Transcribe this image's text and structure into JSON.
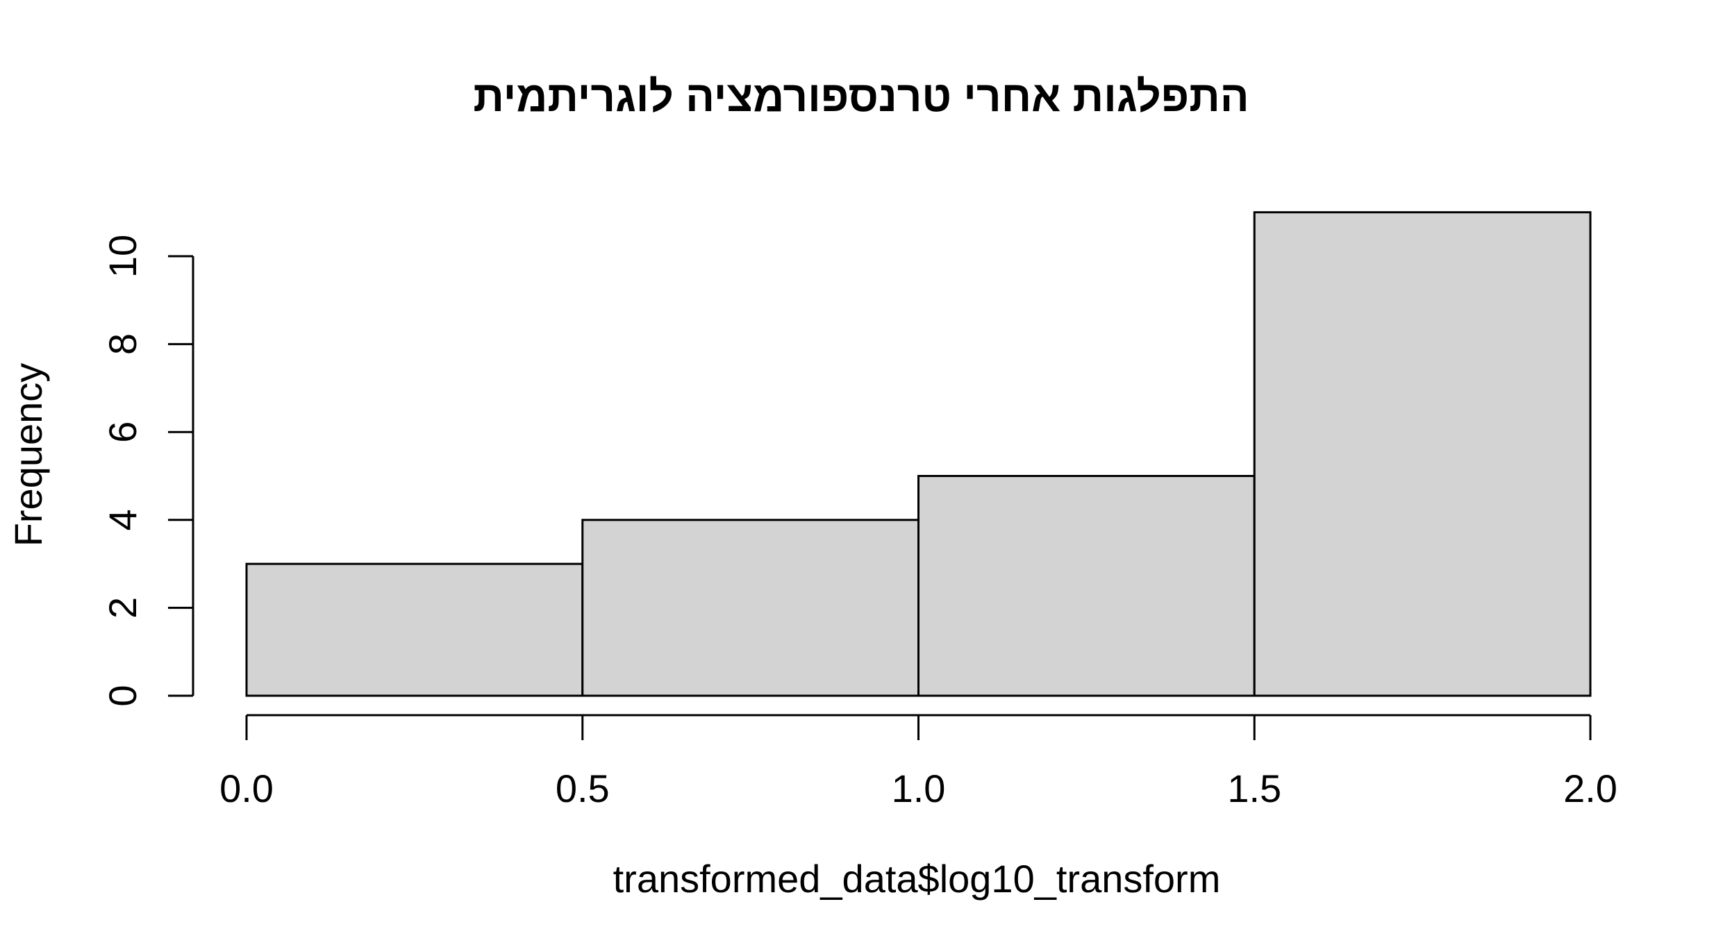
{
  "chart_data": {
    "type": "bar",
    "subtype": "histogram",
    "title": "התפלגות אחרי טרנספורמציה לוגריתמית",
    "xlabel": "transformed_data$log10_transform",
    "ylabel": "Frequency",
    "bins": [
      {
        "start": 0.0,
        "end": 0.5,
        "count": 3
      },
      {
        "start": 0.5,
        "end": 1.0,
        "count": 4
      },
      {
        "start": 1.0,
        "end": 1.5,
        "count": 5
      },
      {
        "start": 1.5,
        "end": 2.0,
        "count": 11
      }
    ],
    "xlim": [
      0.0,
      2.0
    ],
    "ylim": [
      0,
      11
    ],
    "x_ticks": [
      "0.0",
      "0.5",
      "1.0",
      "1.5",
      "2.0"
    ],
    "y_ticks": [
      "0",
      "2",
      "4",
      "6",
      "8",
      "10"
    ],
    "bar_color": "#d3d3d3",
    "border_color": "#000000",
    "grid": false,
    "legend": "none"
  }
}
